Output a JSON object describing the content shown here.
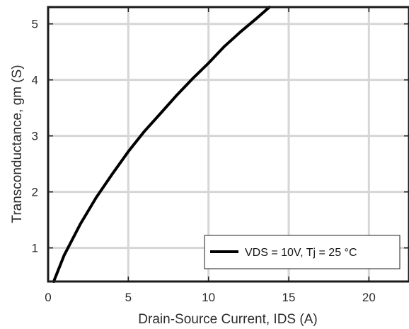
{
  "chart_data": {
    "type": "line",
    "xlabel": "Drain-Source Current, IDS (A)",
    "ylabel": "Transconductance, gm (S)",
    "xlim": [
      0,
      22.5
    ],
    "ylim": [
      0.4,
      5.3
    ],
    "xticks": [
      0,
      5,
      10,
      15,
      20
    ],
    "yticks": [
      1,
      2,
      3,
      4,
      5
    ],
    "xtick_labels": [
      "0",
      "5",
      "10",
      "15",
      "20"
    ],
    "ytick_labels": [
      "1",
      "2",
      "3",
      "4",
      "5"
    ],
    "grid": true,
    "legend_position": "bottom-right",
    "series": [
      {
        "name": "VDS = 10V, Tj = 25 °C",
        "color": "#000000",
        "x": [
          0.35,
          1.0,
          2.0,
          3.0,
          4.0,
          5.0,
          6.0,
          7.0,
          8.0,
          9.0,
          10.0,
          11.0,
          12.0,
          13.0,
          13.8
        ],
        "y": [
          0.4,
          0.87,
          1.42,
          1.9,
          2.32,
          2.72,
          3.08,
          3.4,
          3.72,
          4.02,
          4.3,
          4.6,
          4.86,
          5.1,
          5.3
        ]
      }
    ]
  }
}
